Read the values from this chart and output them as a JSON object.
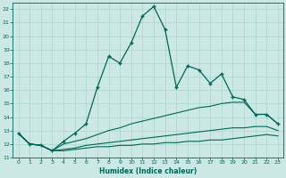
{
  "xlabel": "Humidex (Indice chaleur)",
  "ylabel": "",
  "xlim": [
    -0.5,
    23.5
  ],
  "ylim": [
    11,
    22.5
  ],
  "yticks": [
    11,
    12,
    13,
    14,
    15,
    16,
    17,
    18,
    19,
    20,
    21,
    22
  ],
  "xticks": [
    0,
    1,
    2,
    3,
    4,
    5,
    6,
    7,
    8,
    9,
    10,
    11,
    12,
    13,
    14,
    15,
    16,
    17,
    18,
    19,
    20,
    21,
    22,
    23
  ],
  "bg_color": "#cce8e4",
  "line_color": "#006655",
  "grid_color": "#aad4ce",
  "line1_x": [
    0,
    1,
    2,
    3,
    4,
    5,
    6,
    7,
    8,
    9,
    10,
    11,
    12,
    13,
    14,
    15,
    16,
    17,
    18,
    19,
    20,
    21,
    22,
    23
  ],
  "line1_y": [
    12.8,
    12.0,
    11.9,
    11.5,
    12.2,
    12.8,
    13.5,
    16.2,
    18.5,
    18.0,
    19.5,
    21.5,
    22.2,
    20.5,
    16.2,
    17.8,
    17.5,
    16.5,
    17.2,
    15.5,
    15.3,
    14.2,
    14.2,
    13.5
  ],
  "line2_x": [
    0,
    1,
    2,
    3,
    4,
    5,
    6,
    7,
    8,
    9,
    10,
    11,
    12,
    13,
    14,
    15,
    16,
    17,
    18,
    19,
    20,
    21,
    22,
    23
  ],
  "line2_y": [
    12.8,
    12.0,
    11.9,
    11.5,
    12.0,
    12.2,
    12.4,
    12.7,
    13.0,
    13.2,
    13.5,
    13.7,
    13.9,
    14.1,
    14.3,
    14.5,
    14.7,
    14.8,
    15.0,
    15.1,
    15.1,
    14.2,
    14.2,
    13.5
  ],
  "line3_x": [
    0,
    1,
    2,
    3,
    4,
    5,
    6,
    7,
    8,
    9,
    10,
    11,
    12,
    13,
    14,
    15,
    16,
    17,
    18,
    19,
    20,
    21,
    22,
    23
  ],
  "line3_y": [
    12.8,
    12.0,
    11.9,
    11.5,
    11.6,
    11.7,
    11.9,
    12.0,
    12.1,
    12.2,
    12.3,
    12.4,
    12.5,
    12.6,
    12.7,
    12.8,
    12.9,
    13.0,
    13.1,
    13.2,
    13.2,
    13.3,
    13.3,
    13.0
  ],
  "line4_x": [
    0,
    1,
    2,
    3,
    4,
    5,
    6,
    7,
    8,
    9,
    10,
    11,
    12,
    13,
    14,
    15,
    16,
    17,
    18,
    19,
    20,
    21,
    22,
    23
  ],
  "line4_y": [
    12.8,
    12.0,
    11.9,
    11.5,
    11.5,
    11.6,
    11.7,
    11.8,
    11.8,
    11.9,
    11.9,
    12.0,
    12.0,
    12.1,
    12.1,
    12.2,
    12.2,
    12.3,
    12.3,
    12.4,
    12.5,
    12.6,
    12.7,
    12.6
  ]
}
